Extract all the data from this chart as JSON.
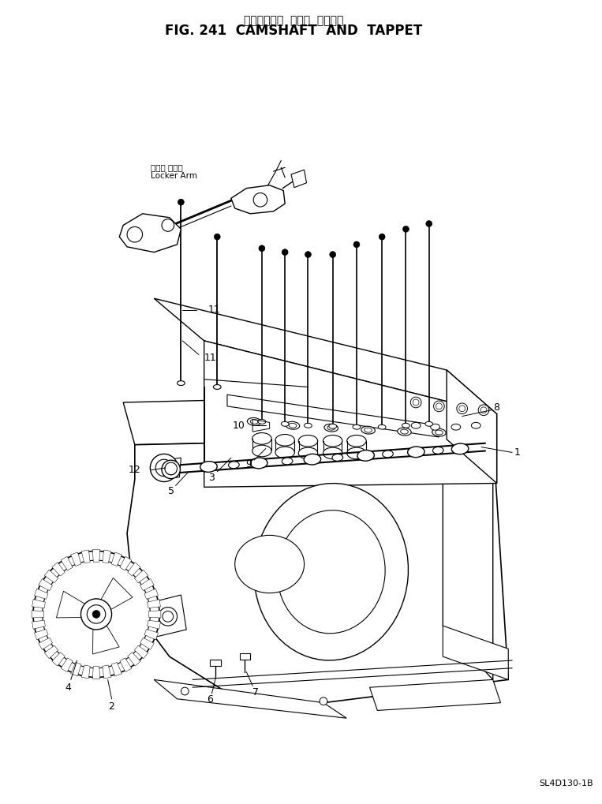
{
  "title_jp": "カムシャフト  および  タペット",
  "title_en": "FIG. 241  CAMSHAFT  AND  TAPPET",
  "footer": "SL4D130-1B",
  "figsize": [
    7.63,
    10.19
  ],
  "dpi": 100
}
